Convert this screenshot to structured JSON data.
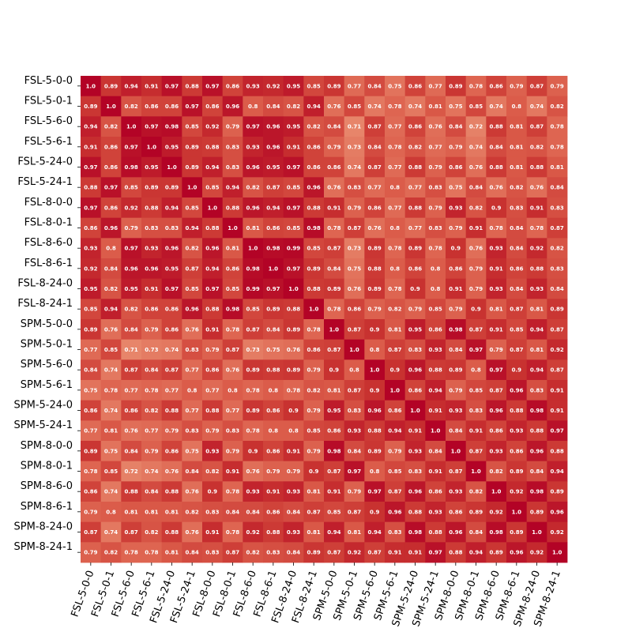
{
  "chart_data": {
    "type": "heatmap",
    "title": "",
    "xlabel": "",
    "ylabel": "",
    "colormap": "coolwarm",
    "vmin": 0.0,
    "vmax": 1.0,
    "colorbar": false,
    "labels": [
      "FSL-5-0-0",
      "FSL-5-0-1",
      "FSL-5-6-0",
      "FSL-5-6-1",
      "FSL-5-24-0",
      "FSL-5-24-1",
      "FSL-8-0-0",
      "FSL-8-0-1",
      "FSL-8-6-0",
      "FSL-8-6-1",
      "FSL-8-24-0",
      "FSL-8-24-1",
      "SPM-5-0-0",
      "SPM-5-0-1",
      "SPM-5-6-0",
      "SPM-5-6-1",
      "SPM-5-24-0",
      "SPM-5-24-1",
      "SPM-8-0-0",
      "SPM-8-0-1",
      "SPM-8-6-0",
      "SPM-8-6-1",
      "SPM-8-24-0",
      "SPM-8-24-1"
    ],
    "values": [
      [
        1.0,
        0.89,
        0.94,
        0.91,
        0.97,
        0.88,
        0.97,
        0.86,
        0.93,
        0.92,
        0.95,
        0.85,
        0.89,
        0.77,
        0.84,
        0.75,
        0.86,
        0.77,
        0.89,
        0.78,
        0.86,
        0.79,
        0.87,
        0.79
      ],
      [
        0.89,
        1.0,
        0.82,
        0.86,
        0.86,
        0.97,
        0.86,
        0.96,
        0.8,
        0.84,
        0.82,
        0.94,
        0.76,
        0.85,
        0.74,
        0.78,
        0.74,
        0.81,
        0.75,
        0.85,
        0.74,
        0.8,
        0.74,
        0.82
      ],
      [
        0.94,
        0.82,
        1.0,
        0.97,
        0.98,
        0.85,
        0.92,
        0.79,
        0.97,
        0.96,
        0.95,
        0.82,
        0.84,
        0.71,
        0.87,
        0.77,
        0.86,
        0.76,
        0.84,
        0.72,
        0.88,
        0.81,
        0.87,
        0.78
      ],
      [
        0.91,
        0.86,
        0.97,
        1.0,
        0.95,
        0.89,
        0.88,
        0.83,
        0.93,
        0.96,
        0.91,
        0.86,
        0.79,
        0.73,
        0.84,
        0.78,
        0.82,
        0.77,
        0.79,
        0.74,
        0.84,
        0.81,
        0.82,
        0.78
      ],
      [
        0.97,
        0.86,
        0.98,
        0.95,
        1.0,
        0.89,
        0.94,
        0.83,
        0.96,
        0.95,
        0.97,
        0.86,
        0.86,
        0.74,
        0.87,
        0.77,
        0.88,
        0.79,
        0.86,
        0.76,
        0.88,
        0.81,
        0.88,
        0.81
      ],
      [
        0.88,
        0.97,
        0.85,
        0.89,
        0.89,
        1.0,
        0.85,
        0.94,
        0.82,
        0.87,
        0.85,
        0.96,
        0.76,
        0.83,
        0.77,
        0.8,
        0.77,
        0.83,
        0.75,
        0.84,
        0.76,
        0.82,
        0.76,
        0.84
      ],
      [
        0.97,
        0.86,
        0.92,
        0.88,
        0.94,
        0.85,
        1.0,
        0.88,
        0.96,
        0.94,
        0.97,
        0.88,
        0.91,
        0.79,
        0.86,
        0.77,
        0.88,
        0.79,
        0.93,
        0.82,
        0.9,
        0.83,
        0.91,
        0.83
      ],
      [
        0.86,
        0.96,
        0.79,
        0.83,
        0.83,
        0.94,
        0.88,
        1.0,
        0.81,
        0.86,
        0.85,
        0.98,
        0.78,
        0.87,
        0.76,
        0.8,
        0.77,
        0.83,
        0.79,
        0.91,
        0.78,
        0.84,
        0.78,
        0.87
      ],
      [
        0.93,
        0.8,
        0.97,
        0.93,
        0.96,
        0.82,
        0.96,
        0.81,
        1.0,
        0.98,
        0.99,
        0.85,
        0.87,
        0.73,
        0.89,
        0.78,
        0.89,
        0.78,
        0.9,
        0.76,
        0.93,
        0.84,
        0.92,
        0.82
      ],
      [
        0.92,
        0.84,
        0.96,
        0.96,
        0.95,
        0.87,
        0.94,
        0.86,
        0.98,
        1.0,
        0.97,
        0.89,
        0.84,
        0.75,
        0.88,
        0.8,
        0.86,
        0.8,
        0.86,
        0.79,
        0.91,
        0.86,
        0.88,
        0.83
      ],
      [
        0.95,
        0.82,
        0.95,
        0.91,
        0.97,
        0.85,
        0.97,
        0.85,
        0.99,
        0.97,
        1.0,
        0.88,
        0.89,
        0.76,
        0.89,
        0.78,
        0.9,
        0.8,
        0.91,
        0.79,
        0.93,
        0.84,
        0.93,
        0.84
      ],
      [
        0.85,
        0.94,
        0.82,
        0.86,
        0.86,
        0.96,
        0.88,
        0.98,
        0.85,
        0.89,
        0.88,
        1.0,
        0.78,
        0.86,
        0.79,
        0.82,
        0.79,
        0.85,
        0.79,
        0.9,
        0.81,
        0.87,
        0.81,
        0.89
      ],
      [
        0.89,
        0.76,
        0.84,
        0.79,
        0.86,
        0.76,
        0.91,
        0.78,
        0.87,
        0.84,
        0.89,
        0.78,
        1.0,
        0.87,
        0.9,
        0.81,
        0.95,
        0.86,
        0.98,
        0.87,
        0.91,
        0.85,
        0.94,
        0.87
      ],
      [
        0.77,
        0.85,
        0.71,
        0.73,
        0.74,
        0.83,
        0.79,
        0.87,
        0.73,
        0.75,
        0.76,
        0.86,
        0.87,
        1.0,
        0.8,
        0.87,
        0.83,
        0.93,
        0.84,
        0.97,
        0.79,
        0.87,
        0.81,
        0.92
      ],
      [
        0.84,
        0.74,
        0.87,
        0.84,
        0.87,
        0.77,
        0.86,
        0.76,
        0.89,
        0.88,
        0.89,
        0.79,
        0.9,
        0.8,
        1.0,
        0.9,
        0.96,
        0.88,
        0.89,
        0.8,
        0.97,
        0.9,
        0.94,
        0.87
      ],
      [
        0.75,
        0.78,
        0.77,
        0.78,
        0.77,
        0.8,
        0.77,
        0.8,
        0.78,
        0.8,
        0.78,
        0.82,
        0.81,
        0.87,
        0.9,
        1.0,
        0.86,
        0.94,
        0.79,
        0.85,
        0.87,
        0.96,
        0.83,
        0.91
      ],
      [
        0.86,
        0.74,
        0.86,
        0.82,
        0.88,
        0.77,
        0.88,
        0.77,
        0.89,
        0.86,
        0.9,
        0.79,
        0.95,
        0.83,
        0.96,
        0.86,
        1.0,
        0.91,
        0.93,
        0.83,
        0.96,
        0.88,
        0.98,
        0.91
      ],
      [
        0.77,
        0.81,
        0.76,
        0.77,
        0.79,
        0.83,
        0.79,
        0.83,
        0.78,
        0.8,
        0.8,
        0.85,
        0.86,
        0.93,
        0.88,
        0.94,
        0.91,
        1.0,
        0.84,
        0.91,
        0.86,
        0.93,
        0.88,
        0.97
      ],
      [
        0.89,
        0.75,
        0.84,
        0.79,
        0.86,
        0.75,
        0.93,
        0.79,
        0.9,
        0.86,
        0.91,
        0.79,
        0.98,
        0.84,
        0.89,
        0.79,
        0.93,
        0.84,
        1.0,
        0.87,
        0.93,
        0.86,
        0.96,
        0.88
      ],
      [
        0.78,
        0.85,
        0.72,
        0.74,
        0.76,
        0.84,
        0.82,
        0.91,
        0.76,
        0.79,
        0.79,
        0.9,
        0.87,
        0.97,
        0.8,
        0.85,
        0.83,
        0.91,
        0.87,
        1.0,
        0.82,
        0.89,
        0.84,
        0.94
      ],
      [
        0.86,
        0.74,
        0.88,
        0.84,
        0.88,
        0.76,
        0.9,
        0.78,
        0.93,
        0.91,
        0.93,
        0.81,
        0.91,
        0.79,
        0.97,
        0.87,
        0.96,
        0.86,
        0.93,
        0.82,
        1.0,
        0.92,
        0.98,
        0.89
      ],
      [
        0.79,
        0.8,
        0.81,
        0.81,
        0.81,
        0.82,
        0.83,
        0.84,
        0.84,
        0.86,
        0.84,
        0.87,
        0.85,
        0.87,
        0.9,
        0.96,
        0.88,
        0.93,
        0.86,
        0.89,
        0.92,
        1.0,
        0.89,
        0.96
      ],
      [
        0.87,
        0.74,
        0.87,
        0.82,
        0.88,
        0.76,
        0.91,
        0.78,
        0.92,
        0.88,
        0.93,
        0.81,
        0.94,
        0.81,
        0.94,
        0.83,
        0.98,
        0.88,
        0.96,
        0.84,
        0.98,
        0.89,
        1.0,
        0.92
      ],
      [
        0.79,
        0.82,
        0.78,
        0.78,
        0.81,
        0.84,
        0.83,
        0.87,
        0.82,
        0.83,
        0.84,
        0.89,
        0.87,
        0.92,
        0.87,
        0.91,
        0.91,
        0.97,
        0.88,
        0.94,
        0.89,
        0.96,
        0.92,
        1.0
      ]
    ]
  }
}
